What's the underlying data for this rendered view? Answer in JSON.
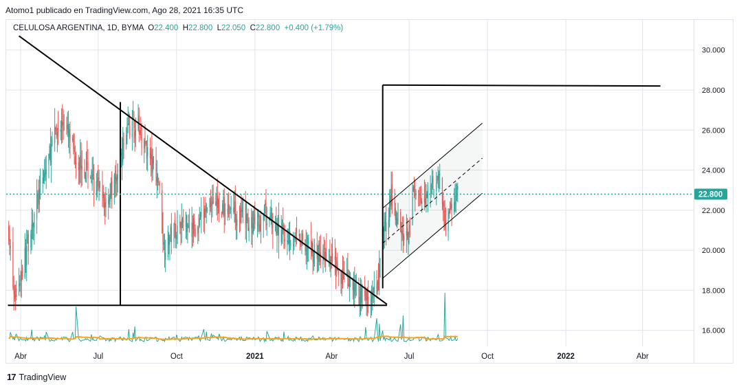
{
  "caption": "Atomo1 publicado en TradingView.com, Ago 28, 2021 16:35 UTC",
  "legend": {
    "symbol": "CELULOSA ARGENTINA, 1D, BYMA",
    "o_label": "O",
    "o_value": "22.400",
    "h_label": "H",
    "h_value": "22.800",
    "l_label": "L",
    "l_value": "22.050",
    "c_label": "C",
    "c_value": "22.800",
    "change": "+0.400 (+1.79%)"
  },
  "footer": {
    "logo_text": "TradingView",
    "logo_mark": "17"
  },
  "colors": {
    "up": "#26a69a",
    "down": "#ef5350",
    "volume": "#26a69a",
    "volume_ma": "#f7a21b",
    "price_line": "#26a69a",
    "drawing": "#000000",
    "grid": "#e0e3eb"
  },
  "chart_data": {
    "type": "candlestick",
    "y_axis": {
      "ticks": [
        "16.000",
        "18.000",
        "20.000",
        "22.000",
        "24.000",
        "26.000",
        "28.000",
        "30.000"
      ],
      "tick_values": [
        16,
        18,
        20,
        22,
        24,
        26,
        28,
        30
      ],
      "range": [
        15.2,
        31.5
      ],
      "position": "right"
    },
    "x_axis": {
      "ticks": [
        "Abr",
        "Jul",
        "Oct",
        "2021",
        "Abr",
        "Jul",
        "Oct",
        "2022",
        "Abr"
      ],
      "tick_dates": [
        "2020-04-01",
        "2020-07-01",
        "2020-10-01",
        "2021-01-01",
        "2021-04-01",
        "2021-07-01",
        "2021-10-01",
        "2022-01-01",
        "2022-04-01"
      ],
      "range": [
        "2020-03-15",
        "2022-05-31"
      ]
    },
    "last_price": {
      "label": "22.800",
      "value": 22.8
    },
    "price_path": [
      [
        "2020-03-18",
        21.0
      ],
      [
        "2020-03-24",
        17.6
      ],
      [
        "2020-04-02",
        18.9
      ],
      [
        "2020-04-15",
        21.5
      ],
      [
        "2020-04-29",
        23.8
      ],
      [
        "2020-05-12",
        25.9
      ],
      [
        "2020-05-22",
        26.4
      ],
      [
        "2020-06-05",
        24.6
      ],
      [
        "2020-06-18",
        24.1
      ],
      [
        "2020-06-30",
        23.0
      ],
      [
        "2020-07-09",
        22.4
      ],
      [
        "2020-07-23",
        23.6
      ],
      [
        "2020-08-04",
        26.2
      ],
      [
        "2020-08-17",
        26.1
      ],
      [
        "2020-08-28",
        24.9
      ],
      [
        "2020-09-10",
        23.4
      ],
      [
        "2020-09-16",
        20.2
      ],
      [
        "2020-09-30",
        21.1
      ],
      [
        "2020-10-12",
        21.5
      ],
      [
        "2020-10-26",
        21.0
      ],
      [
        "2020-11-10",
        22.6
      ],
      [
        "2020-11-24",
        22.1
      ],
      [
        "2020-12-08",
        22.0
      ],
      [
        "2020-12-28",
        21.2
      ],
      [
        "2021-01-14",
        21.7
      ],
      [
        "2021-01-29",
        20.9
      ],
      [
        "2021-02-12",
        20.7
      ],
      [
        "2021-03-01",
        20.2
      ],
      [
        "2021-03-18",
        19.8
      ],
      [
        "2021-04-05",
        19.3
      ],
      [
        "2021-04-20",
        18.3
      ],
      [
        "2021-05-06",
        17.9
      ],
      [
        "2021-05-17",
        17.5
      ],
      [
        "2021-05-25",
        18.0
      ],
      [
        "2021-05-31",
        20.6
      ],
      [
        "2021-06-10",
        22.6
      ],
      [
        "2021-06-18",
        21.6
      ],
      [
        "2021-06-28",
        20.8
      ],
      [
        "2021-07-06",
        22.8
      ],
      [
        "2021-07-16",
        22.2
      ],
      [
        "2021-07-26",
        23.4
      ],
      [
        "2021-08-05",
        23.6
      ],
      [
        "2021-08-12",
        21.5
      ],
      [
        "2021-08-20",
        22.1
      ],
      [
        "2021-08-27",
        22.8
      ]
    ],
    "volume_spikes": [
      [
        "2020-06-05",
        0.55
      ],
      [
        "2020-05-01",
        0.18
      ],
      [
        "2020-08-06",
        0.22
      ],
      [
        "2020-08-13",
        0.26
      ],
      [
        "2020-11-02",
        0.22
      ],
      [
        "2021-05-11",
        0.25
      ],
      [
        "2021-05-24",
        0.38
      ],
      [
        "2021-05-27",
        0.3
      ],
      [
        "2021-05-31",
        0.2
      ],
      [
        "2021-06-21",
        0.29
      ],
      [
        "2021-06-24",
        0.42
      ],
      [
        "2021-08-12",
        0.75
      ]
    ],
    "drawings": {
      "descending_trendline": [
        [
          "2020-03-30",
          30.7
        ],
        [
          "2021-06-05",
          17.3
        ]
      ],
      "triangle_base": [
        [
          "2020-03-17",
          17.25
        ],
        [
          "2021-06-05",
          17.25
        ]
      ],
      "triangle_height": [
        [
          "2020-07-27",
          27.4
        ],
        [
          "2020-07-27",
          17.25
        ]
      ],
      "target_vertical": [
        [
          "2021-05-31",
          18.1
        ],
        [
          "2021-05-31",
          28.25
        ]
      ],
      "target_horizontal": [
        [
          "2021-05-31",
          28.25
        ],
        [
          "2022-04-22",
          28.2
        ]
      ],
      "channel_upper": [
        [
          "2021-05-31",
          22.1
        ],
        [
          "2021-09-25",
          26.35
        ]
      ],
      "channel_lower": [
        [
          "2021-05-31",
          18.6
        ],
        [
          "2021-09-25",
          22.85
        ]
      ],
      "channel_mid": [
        [
          "2021-05-31",
          20.35
        ],
        [
          "2021-09-25",
          24.6
        ]
      ]
    }
  }
}
